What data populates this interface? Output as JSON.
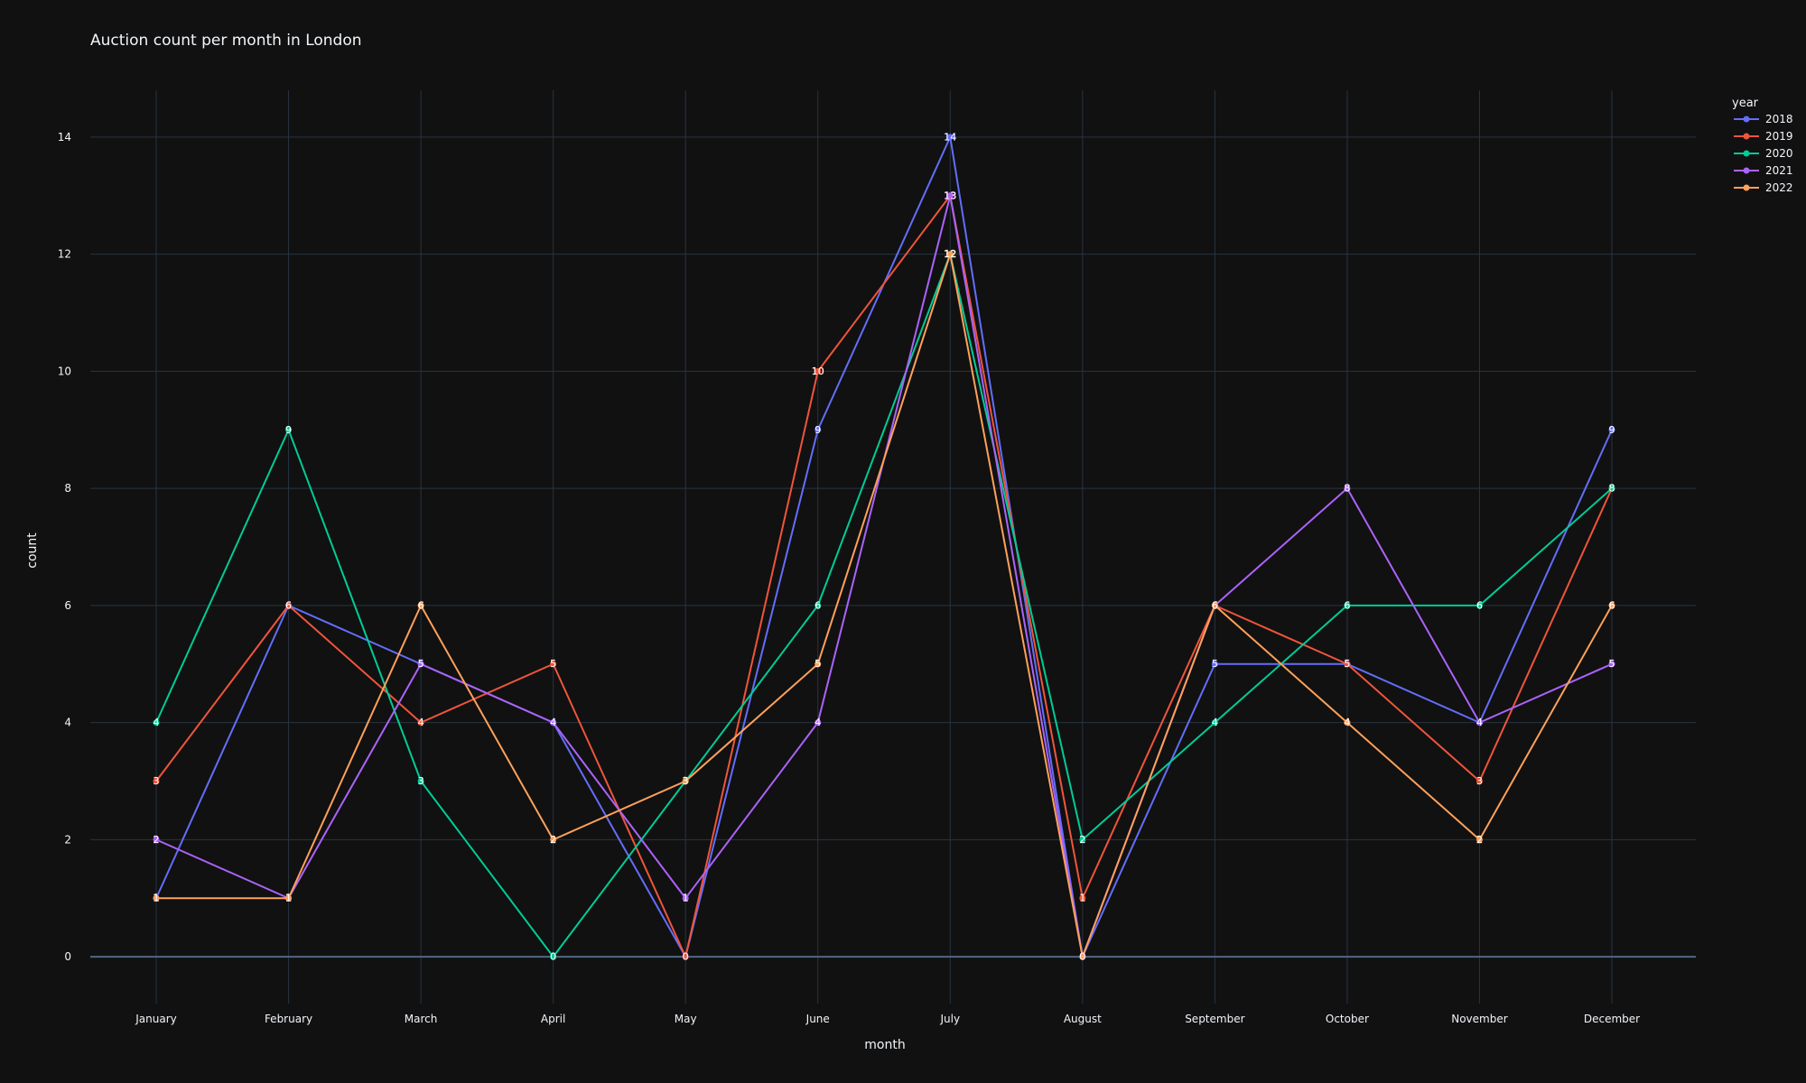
{
  "chart_data": {
    "type": "line",
    "title": "Auction count per month in London",
    "xlabel": "month",
    "ylabel": "count",
    "ylim": [
      -0.8,
      14.8
    ],
    "yticks": [
      0,
      2,
      4,
      6,
      8,
      10,
      12,
      14
    ],
    "grid": true,
    "legend_title": "year",
    "legend_position": "top-right",
    "categories": [
      "January",
      "February",
      "March",
      "April",
      "May",
      "June",
      "July",
      "August",
      "September",
      "October",
      "November",
      "December"
    ],
    "series": [
      {
        "name": "2018",
        "color": "#636efa",
        "values": [
          1,
          6,
          5,
          4,
          0,
          9,
          14,
          0,
          5,
          5,
          4,
          9
        ]
      },
      {
        "name": "2019",
        "color": "#ef553b",
        "values": [
          3,
          6,
          4,
          5,
          0,
          10,
          13,
          1,
          6,
          5,
          3,
          8
        ]
      },
      {
        "name": "2020",
        "color": "#00cc96",
        "values": [
          4,
          9,
          3,
          0,
          3,
          6,
          12,
          2,
          4,
          6,
          6,
          8
        ]
      },
      {
        "name": "2021",
        "color": "#ab63fa",
        "values": [
          2,
          1,
          5,
          4,
          1,
          4,
          13,
          0,
          6,
          8,
          4,
          5
        ]
      },
      {
        "name": "2022",
        "color": "#ffa15a",
        "values": [
          1,
          1,
          6,
          2,
          3,
          5,
          12,
          0,
          6,
          4,
          2,
          6
        ]
      }
    ]
  }
}
